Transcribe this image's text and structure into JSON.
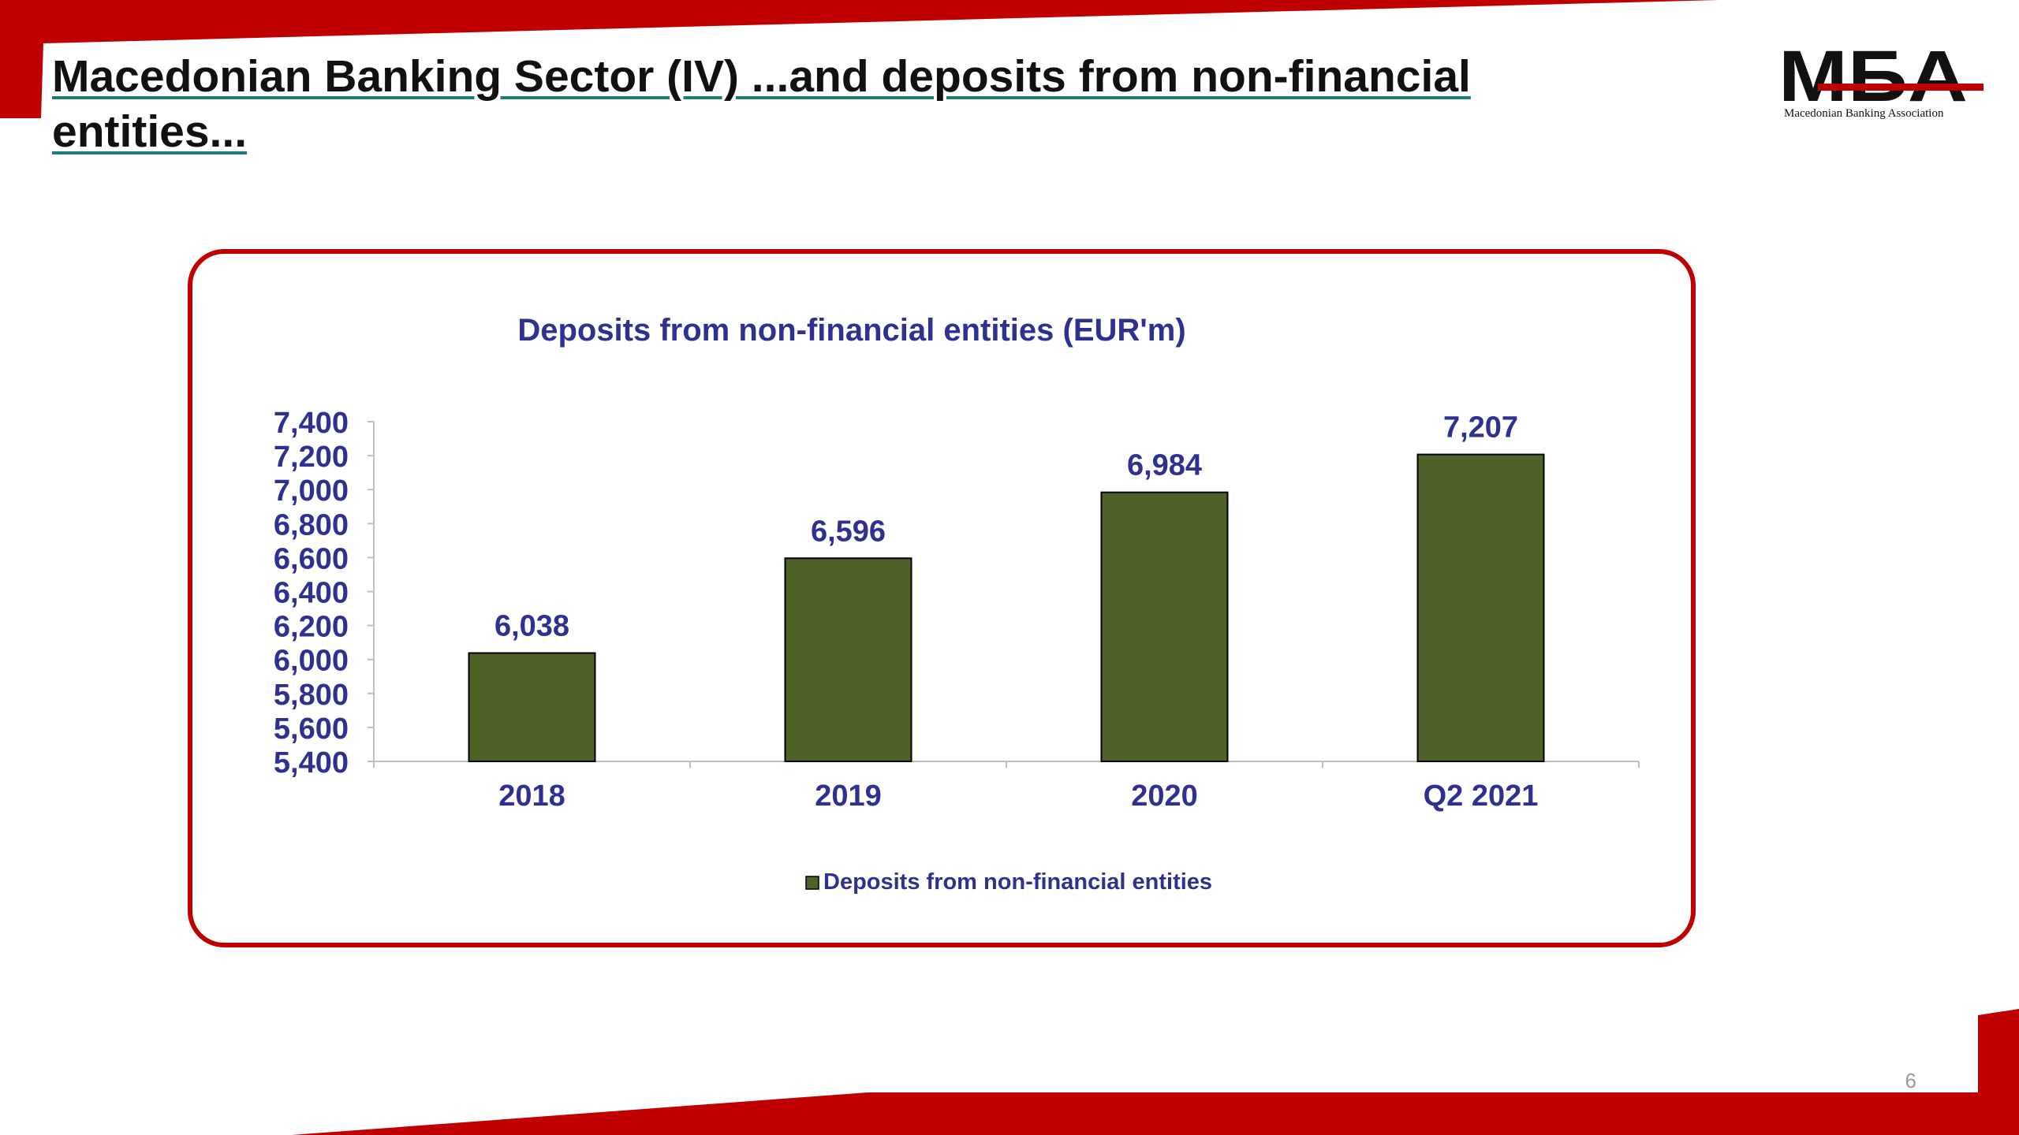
{
  "slide": {
    "title": "Macedonian Banking Sector (IV) ...and deposits from non-financial entities...",
    "page_number": "6"
  },
  "logo": {
    "mark": "MБA",
    "caption": "Macedonian Banking Association"
  },
  "colors": {
    "brand_red": "#c00000",
    "bar_fill": "#4f6228",
    "chart_text": "#2e3192",
    "title_underline": "#1f7a7a"
  },
  "chart_data": {
    "type": "bar",
    "title": "Deposits from non-financial entities (EUR'm)",
    "categories": [
      "2018",
      "2019",
      "2020",
      "Q2 2021"
    ],
    "series": [
      {
        "name": "Deposits from non-financial entities",
        "values": [
          6038,
          6596,
          6984,
          7207
        ]
      }
    ],
    "data_labels": [
      "6,038",
      "6,596",
      "6,984",
      "7,207"
    ],
    "ylim": [
      5400,
      7400
    ],
    "y_ticks": [
      "5,400",
      "5,600",
      "5,800",
      "6,000",
      "6,200",
      "6,400",
      "6,600",
      "6,800",
      "7,000",
      "7,200",
      "7,400"
    ],
    "xlabel": "",
    "ylabel": "",
    "grid": false,
    "legend_position": "bottom"
  }
}
